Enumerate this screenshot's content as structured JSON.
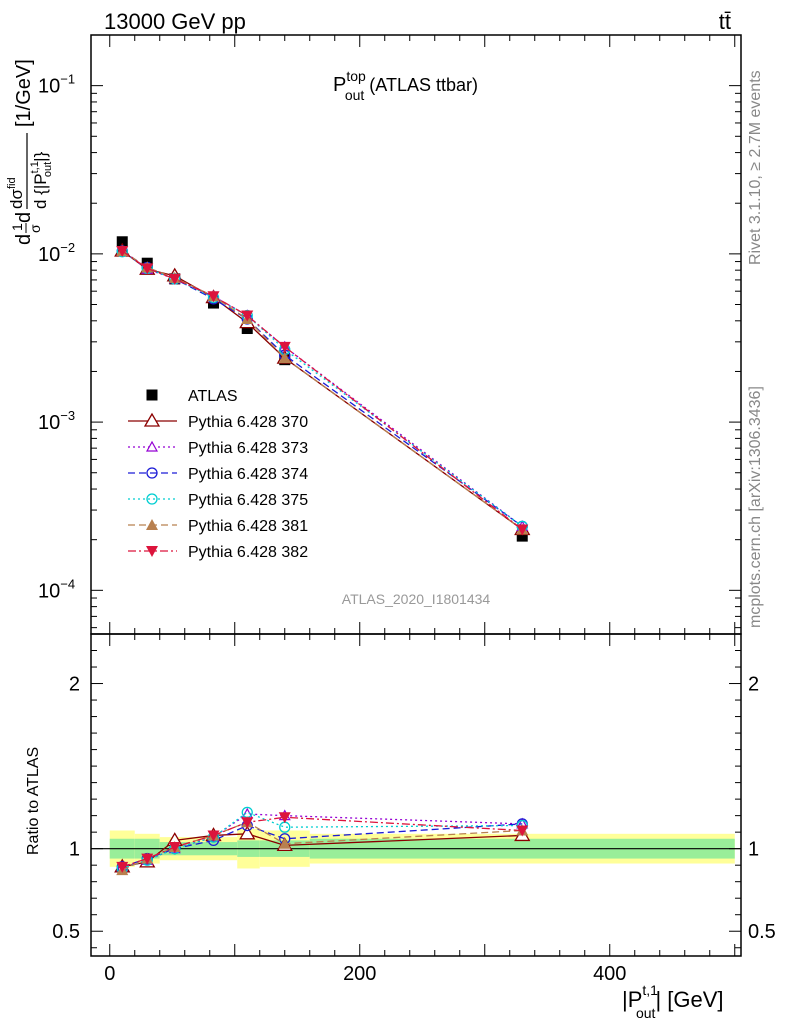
{
  "header": {
    "beam_label": "13000 GeV pp",
    "process_label": "tt̄"
  },
  "side_labels": {
    "rivet": "Rivet 3.1.10, ≥ 2.7M events",
    "mcplots": "mcplots.cern.ch [arXiv:1306.3436]"
  },
  "watermark": "ATLAS_2020_I1801434",
  "plot_title": {
    "main": "P",
    "sup": "top",
    "sub": "out",
    "rest": " (ATLAS ttbar)"
  },
  "axes": {
    "ylabel_main": "dσ/d{|P_out^t,1|} [1/GeV]",
    "ylabel_ratio": "Ratio to ATLAS",
    "xlabel": "|P_out^t,1| [GeV]",
    "xlabel_main": "|P",
    "xlabel_sup": "t,1",
    "xlabel_sub": "out",
    "xlabel_unit": "| [GeV]",
    "ylabel_lead": "d",
    "ylabel_frac1_num": "1",
    "ylabel_frac1_den": "σ",
    "ylabel_frac2_num": "dσ",
    "ylabel_frac2_sup": "fid",
    "ylabel_frac2_den": "d {|P",
    "ylabel_frac2_den_sup": "t,1",
    "ylabel_frac2_den_sub": "out",
    "ylabel_frac2_den_tail": "|}",
    "ylabel_unit": "[1/GeV]",
    "main_ytick_labels": [
      "10",
      "10",
      "10",
      "10"
    ],
    "main_ytick_exps": [
      "−1",
      "−2",
      "−3",
      "−4"
    ],
    "ratio_ytick_labels": [
      "2",
      "1",
      "0.5"
    ],
    "xtick_labels": [
      "0",
      "200",
      "400"
    ]
  },
  "legend": [
    {
      "label": "ATLAS",
      "color": "#000000",
      "marker": "square",
      "dash": "none"
    },
    {
      "label": "Pythia 6.428 370",
      "color": "#8b0000",
      "marker": "triangle-open",
      "dash": "solid"
    },
    {
      "label": "Pythia 6.428 373",
      "color": "#9400d3",
      "marker": "triangle-open-small",
      "dash": "dotted"
    },
    {
      "label": "Pythia 6.428 374",
      "color": "#1c1cd6",
      "marker": "circle-open",
      "dash": "dashed"
    },
    {
      "label": "Pythia 6.428 375",
      "color": "#00ced1",
      "marker": "circle-open",
      "dash": "dotted"
    },
    {
      "label": "Pythia 6.428 381",
      "color": "#b8804f",
      "marker": "triangle-filled",
      "dash": "dashed"
    },
    {
      "label": "Pythia 6.428 382",
      "color": "#dc143c",
      "marker": "triangle-down-filled",
      "dash": "dashdot"
    }
  ],
  "chart_data": {
    "type": "line",
    "x": [
      10,
      30,
      52,
      83,
      110,
      140,
      330
    ],
    "xlim": [
      -15,
      505
    ],
    "main_ylim": [
      5.5e-05,
      0.2
    ],
    "main_ylog": true,
    "ratio_ylim": [
      0.35,
      2.3
    ],
    "series": [
      {
        "name": "ATLAS",
        "values": [
          0.0118,
          0.0088,
          0.0071,
          0.0051,
          0.0036,
          0.00235,
          0.00021
        ]
      },
      {
        "name": "Pythia 6.428 370",
        "values": [
          0.0104,
          0.0081,
          0.0074,
          0.0055,
          0.0039,
          0.0024,
          0.00023
        ]
      },
      {
        "name": "Pythia 6.428 373",
        "values": [
          0.0104,
          0.0081,
          0.0071,
          0.0056,
          0.0043,
          0.0028,
          0.00024
        ]
      },
      {
        "name": "Pythia 6.428 374",
        "values": [
          0.0104,
          0.0083,
          0.0071,
          0.0054,
          0.0041,
          0.0025,
          0.00024
        ]
      },
      {
        "name": "Pythia 6.428 375",
        "values": [
          0.0103,
          0.0082,
          0.0071,
          0.0055,
          0.0043,
          0.0027,
          0.00024
        ]
      },
      {
        "name": "Pythia 6.428 381",
        "values": [
          0.0104,
          0.0083,
          0.0072,
          0.0056,
          0.0041,
          0.0024,
          0.00023
        ]
      },
      {
        "name": "Pythia 6.428 382",
        "values": [
          0.0104,
          0.0082,
          0.0071,
          0.0056,
          0.0043,
          0.0028,
          0.00023
        ]
      }
    ],
    "ratio_series": [
      {
        "name": "Pythia 6.428 370",
        "values": [
          0.89,
          0.92,
          1.05,
          1.08,
          1.09,
          1.02,
          1.08
        ]
      },
      {
        "name": "Pythia 6.428 373",
        "values": [
          0.89,
          0.93,
          1.0,
          1.07,
          1.21,
          1.2,
          1.15
        ]
      },
      {
        "name": "Pythia 6.428 374",
        "values": [
          0.89,
          0.94,
          1.0,
          1.05,
          1.14,
          1.06,
          1.15
        ]
      },
      {
        "name": "Pythia 6.428 375",
        "values": [
          0.88,
          0.93,
          1.0,
          1.07,
          1.22,
          1.13,
          1.14
        ]
      },
      {
        "name": "Pythia 6.428 381",
        "values": [
          0.87,
          0.94,
          1.01,
          1.08,
          1.16,
          1.03,
          1.11
        ]
      },
      {
        "name": "Pythia 6.428 382",
        "values": [
          0.89,
          0.94,
          1.01,
          1.08,
          1.16,
          1.19,
          1.11
        ]
      }
    ],
    "ratio_bands": {
      "bin_edges": [
        0,
        20,
        40,
        63,
        102,
        120,
        160,
        500
      ],
      "yellow_half": [
        0.11,
        0.09,
        0.07,
        0.07,
        0.12,
        0.11,
        0.09
      ],
      "green_half": [
        0.06,
        0.06,
        0.04,
        0.04,
        0.05,
        0.05,
        0.06
      ]
    }
  }
}
